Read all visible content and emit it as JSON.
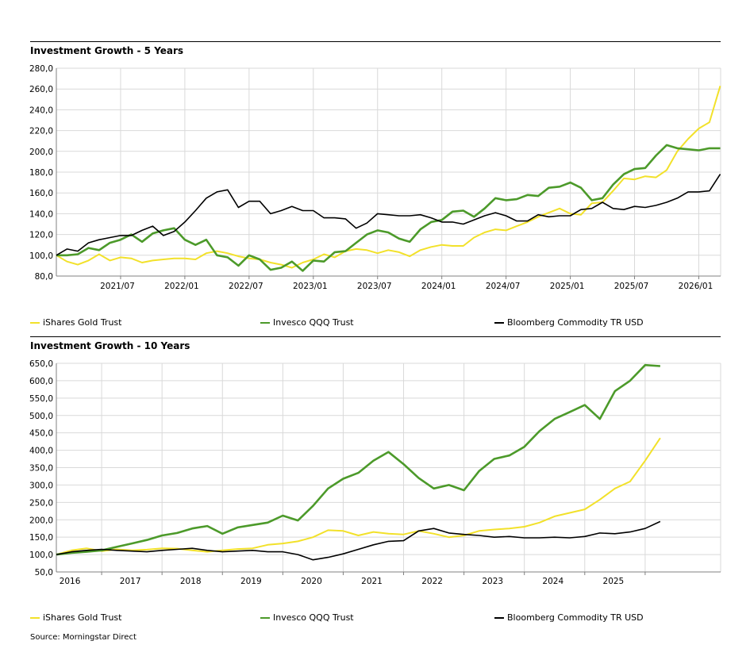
{
  "source": "Source: Morningstar Direct",
  "chart_data": [
    {
      "type": "line",
      "title": "Investment Growth - 5 Years",
      "y_ticks": [
        "80,0",
        "100,0",
        "120,0",
        "140,0",
        "160,0",
        "180,0",
        "200,0",
        "220,0",
        "240,0",
        "260,0",
        "280,0"
      ],
      "ylim": [
        80,
        280
      ],
      "x_range": [
        2021.0,
        2026.17
      ],
      "x_tick_labels": [
        "2021/07",
        "2022/01",
        "2022/07",
        "2023/01",
        "2023/07",
        "2024/01",
        "2024/07",
        "2025/01",
        "2025/07",
        "2026/01"
      ],
      "x_ticks": [
        2021.5,
        2022.0,
        2022.5,
        2023.0,
        2023.5,
        2024.0,
        2024.5,
        2025.0,
        2025.5,
        2026.0
      ],
      "grid": true,
      "legend_position": "bottom",
      "series": [
        {
          "name": "iShares Gold Trust",
          "color": "#f2e12a",
          "x": [
            2021.0,
            2021.083,
            2021.167,
            2021.25,
            2021.333,
            2021.417,
            2021.5,
            2021.583,
            2021.667,
            2021.75,
            2021.833,
            2021.917,
            2022.0,
            2022.083,
            2022.167,
            2022.25,
            2022.333,
            2022.417,
            2022.5,
            2022.583,
            2022.667,
            2022.75,
            2022.833,
            2022.917,
            2023.0,
            2023.083,
            2023.167,
            2023.25,
            2023.333,
            2023.417,
            2023.5,
            2023.583,
            2023.667,
            2023.75,
            2023.833,
            2023.917,
            2024.0,
            2024.083,
            2024.167,
            2024.25,
            2024.333,
            2024.417,
            2024.5,
            2024.583,
            2024.667,
            2024.75,
            2024.833,
            2024.917,
            2025.0,
            2025.083,
            2025.167,
            2025.25,
            2025.333,
            2025.417,
            2025.5,
            2025.583,
            2025.667,
            2025.75,
            2025.833,
            2025.917,
            2026.0,
            2026.083,
            2026.167
          ],
          "y": [
            100,
            94,
            91,
            95,
            101,
            95,
            98,
            97,
            93,
            95,
            96,
            97,
            97,
            96,
            102,
            104,
            102,
            99,
            97,
            96,
            93,
            91,
            88,
            93,
            96,
            101,
            98,
            104,
            106,
            105,
            102,
            105,
            103,
            99,
            105,
            108,
            110,
            109,
            109,
            117,
            122,
            125,
            124,
            128,
            132,
            137,
            141,
            145,
            140,
            139,
            150,
            151,
            162,
            174,
            173,
            176,
            175,
            182,
            200,
            212,
            222,
            228,
            263
          ]
        },
        {
          "name": "Invesco QQQ Trust",
          "color": "#4c9a2a",
          "x": [
            2021.0,
            2021.083,
            2021.167,
            2021.25,
            2021.333,
            2021.417,
            2021.5,
            2021.583,
            2021.667,
            2021.75,
            2021.833,
            2021.917,
            2022.0,
            2022.083,
            2022.167,
            2022.25,
            2022.333,
            2022.417,
            2022.5,
            2022.583,
            2022.667,
            2022.75,
            2022.833,
            2022.917,
            2023.0,
            2023.083,
            2023.167,
            2023.25,
            2023.333,
            2023.417,
            2023.5,
            2023.583,
            2023.667,
            2023.75,
            2023.833,
            2023.917,
            2024.0,
            2024.083,
            2024.167,
            2024.25,
            2024.333,
            2024.417,
            2024.5,
            2024.583,
            2024.667,
            2024.75,
            2024.833,
            2024.917,
            2025.0,
            2025.083,
            2025.167,
            2025.25,
            2025.333,
            2025.417,
            2025.5,
            2025.583,
            2025.667,
            2025.75,
            2025.833,
            2025.917,
            2026.0,
            2026.083,
            2026.167
          ],
          "y": [
            100,
            100,
            101,
            107,
            105,
            112,
            115,
            120,
            113,
            121,
            124,
            126,
            115,
            110,
            115,
            100,
            98,
            90,
            100,
            96,
            86,
            88,
            94,
            85,
            95,
            94,
            103,
            104,
            112,
            120,
            124,
            122,
            116,
            113,
            125,
            132,
            134,
            142,
            143,
            137,
            145,
            155,
            153,
            154,
            158,
            157,
            165,
            166,
            170,
            165,
            153,
            155,
            168,
            178,
            183,
            184,
            196,
            206,
            203,
            202,
            201,
            203,
            203
          ]
        },
        {
          "name": "Bloomberg Commodity TR USD",
          "color": "#000000",
          "x": [
            2021.0,
            2021.083,
            2021.167,
            2021.25,
            2021.333,
            2021.417,
            2021.5,
            2021.583,
            2021.667,
            2021.75,
            2021.833,
            2021.917,
            2022.0,
            2022.083,
            2022.167,
            2022.25,
            2022.333,
            2022.417,
            2022.5,
            2022.583,
            2022.667,
            2022.75,
            2022.833,
            2022.917,
            2023.0,
            2023.083,
            2023.167,
            2023.25,
            2023.333,
            2023.417,
            2023.5,
            2023.583,
            2023.667,
            2023.75,
            2023.833,
            2023.917,
            2024.0,
            2024.083,
            2024.167,
            2024.25,
            2024.333,
            2024.417,
            2024.5,
            2024.583,
            2024.667,
            2024.75,
            2024.833,
            2024.917,
            2025.0,
            2025.083,
            2025.167,
            2025.25,
            2025.333,
            2025.417,
            2025.5,
            2025.583,
            2025.667,
            2025.75,
            2025.833,
            2025.917,
            2026.0,
            2026.083,
            2026.167
          ],
          "y": [
            100,
            106,
            104,
            112,
            115,
            117,
            119,
            119,
            124,
            128,
            119,
            123,
            132,
            143,
            155,
            161,
            163,
            146,
            152,
            152,
            140,
            143,
            147,
            143,
            143,
            136,
            136,
            135,
            126,
            131,
            140,
            139,
            138,
            138,
            139,
            136,
            132,
            132,
            130,
            134,
            138,
            141,
            138,
            133,
            133,
            139,
            137,
            138,
            138,
            144,
            145,
            151,
            145,
            144,
            147,
            146,
            148,
            151,
            155,
            161,
            161,
            162,
            178
          ]
        }
      ]
    },
    {
      "type": "line",
      "title": "Investment Growth - 10 Years",
      "y_ticks": [
        "50,0",
        "100,0",
        "150,0",
        "200,0",
        "250,0",
        "300,0",
        "350,0",
        "400,0",
        "450,0",
        "500,0",
        "550,0",
        "600,0",
        "650,0"
      ],
      "ylim": [
        50,
        650
      ],
      "x_range": [
        2015.25,
        2026.25
      ],
      "x_tick_labels": [
        "2016",
        "2017",
        "2018",
        "2019",
        "2020",
        "2021",
        "2022",
        "2023",
        "2024",
        "2025"
      ],
      "x_ticks": [
        2016.0,
        2017.0,
        2018.0,
        2019.0,
        2020.0,
        2021.0,
        2022.0,
        2023.0,
        2024.0,
        2025.0
      ],
      "grid": true,
      "legend_position": "bottom",
      "series": [
        {
          "name": "iShares Gold Trust",
          "color": "#f2e12a",
          "x": [
            2015.25,
            2015.5,
            2015.75,
            2016.0,
            2016.25,
            2016.5,
            2016.75,
            2017.0,
            2017.25,
            2017.5,
            2017.75,
            2018.0,
            2018.25,
            2018.5,
            2018.75,
            2019.0,
            2019.25,
            2019.5,
            2019.75,
            2020.0,
            2020.25,
            2020.5,
            2020.75,
            2021.0,
            2021.25,
            2021.5,
            2021.75,
            2022.0,
            2022.25,
            2022.5,
            2022.75,
            2023.0,
            2023.25,
            2023.5,
            2023.75,
            2024.0,
            2024.25,
            2024.5,
            2024.75,
            2025.0,
            2025.25
          ],
          "y": [
            100,
            112,
            118,
            110,
            115,
            112,
            114,
            118,
            117,
            112,
            108,
            112,
            116,
            118,
            128,
            132,
            138,
            150,
            170,
            168,
            155,
            165,
            160,
            158,
            168,
            160,
            150,
            155,
            168,
            172,
            175,
            180,
            192,
            210,
            220,
            230,
            258,
            290,
            310,
            370,
            435
          ]
        },
        {
          "name": "Invesco QQQ Trust",
          "color": "#4c9a2a",
          "x": [
            2015.25,
            2015.5,
            2015.75,
            2016.0,
            2016.25,
            2016.5,
            2016.75,
            2017.0,
            2017.25,
            2017.5,
            2017.75,
            2018.0,
            2018.25,
            2018.5,
            2018.75,
            2019.0,
            2019.25,
            2019.5,
            2019.75,
            2020.0,
            2020.25,
            2020.5,
            2020.75,
            2021.0,
            2021.25,
            2021.5,
            2021.75,
            2022.0,
            2022.25,
            2022.5,
            2022.75,
            2023.0,
            2023.25,
            2023.5,
            2023.75,
            2024.0,
            2024.25,
            2024.5,
            2024.75,
            2025.0,
            2025.25
          ],
          "y": [
            100,
            105,
            108,
            112,
            122,
            132,
            142,
            155,
            162,
            175,
            182,
            160,
            178,
            185,
            192,
            212,
            198,
            240,
            290,
            318,
            335,
            370,
            395,
            360,
            320,
            290,
            300,
            285,
            340,
            375,
            385,
            410,
            455,
            490,
            510,
            530,
            490,
            570,
            600,
            645,
            642
          ]
        },
        {
          "name": "Bloomberg Commodity TR USD",
          "color": "#000000",
          "x": [
            2015.25,
            2015.5,
            2015.75,
            2016.0,
            2016.25,
            2016.5,
            2016.75,
            2017.0,
            2017.25,
            2017.5,
            2017.75,
            2018.0,
            2018.25,
            2018.5,
            2018.75,
            2019.0,
            2019.25,
            2019.5,
            2019.75,
            2020.0,
            2020.25,
            2020.5,
            2020.75,
            2021.0,
            2021.25,
            2021.5,
            2021.75,
            2022.0,
            2022.25,
            2022.5,
            2022.75,
            2023.0,
            2023.25,
            2023.5,
            2023.75,
            2024.0,
            2024.25,
            2024.5,
            2024.75,
            2025.0,
            2025.25
          ],
          "y": [
            100,
            108,
            112,
            115,
            112,
            110,
            108,
            112,
            115,
            118,
            112,
            108,
            110,
            112,
            108,
            108,
            100,
            85,
            92,
            102,
            115,
            128,
            138,
            140,
            168,
            175,
            162,
            158,
            155,
            150,
            152,
            148,
            148,
            150,
            148,
            152,
            162,
            160,
            165,
            175,
            195
          ]
        }
      ]
    }
  ]
}
